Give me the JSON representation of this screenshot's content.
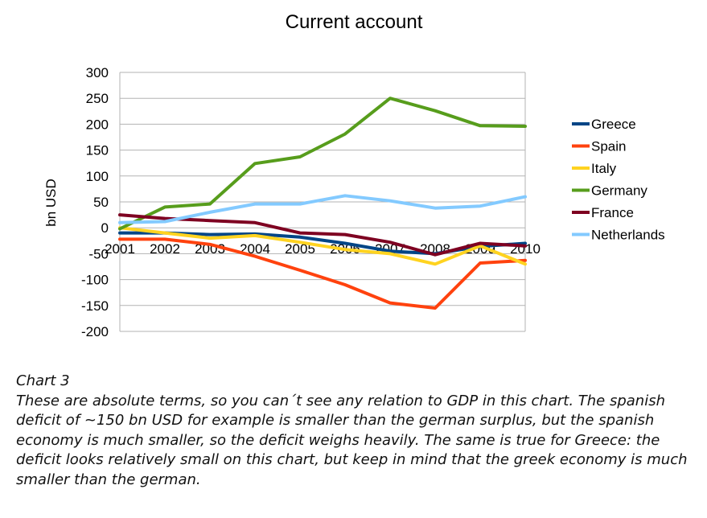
{
  "chart_data": {
    "type": "line",
    "title": "Current account",
    "xlabel": "",
    "ylabel": "bn USD",
    "x": [
      "2001",
      "2002",
      "2003",
      "2004",
      "2005",
      "2006",
      "2007",
      "2008",
      "2009",
      "2010"
    ],
    "ylim": [
      -200,
      300
    ],
    "yticks": [
      "300",
      "250",
      "200",
      "150",
      "100",
      "50",
      "0",
      "-50",
      "-100",
      "-150",
      "-200"
    ],
    "grid": true,
    "legend": "right",
    "series": [
      {
        "name": "Greece",
        "color": "#004586",
        "values": [
          -10,
          -10,
          -13,
          -12,
          -18,
          -30,
          -45,
          -50,
          -36,
          -30
        ]
      },
      {
        "name": "Spain",
        "color": "#ff420e",
        "values": [
          -22,
          -22,
          -32,
          -55,
          -82,
          -110,
          -145,
          -155,
          -68,
          -63
        ]
      },
      {
        "name": "Italy",
        "color": "#ffd320",
        "values": [
          0,
          -10,
          -20,
          -15,
          -28,
          -42,
          -50,
          -70,
          -35,
          -70
        ]
      },
      {
        "name": "Germany",
        "color": "#579d1c",
        "values": [
          -2,
          40,
          46,
          124,
          137,
          181,
          250,
          226,
          197,
          196
        ]
      },
      {
        "name": "France",
        "color": "#7e0021",
        "values": [
          25,
          18,
          14,
          10,
          -10,
          -13,
          -28,
          -52,
          -30,
          -35
        ]
      },
      {
        "name": "Netherlands",
        "color": "#83caff",
        "values": [
          10,
          12,
          30,
          46,
          46,
          62,
          52,
          38,
          42,
          60
        ]
      }
    ]
  },
  "caption": {
    "heading": "Chart 3",
    "text": "These are absolute terms, so you can´t see any relation to GDP in this chart. The spanish deficit of ~150 bn USD for example is smaller than the german surplus, but the spanish economy is much smaller, so the deficit weighs heavily. The same is true for Greece: the deficit looks relatively small on this chart, but keep in mind that the greek economy is much smaller than the german."
  }
}
